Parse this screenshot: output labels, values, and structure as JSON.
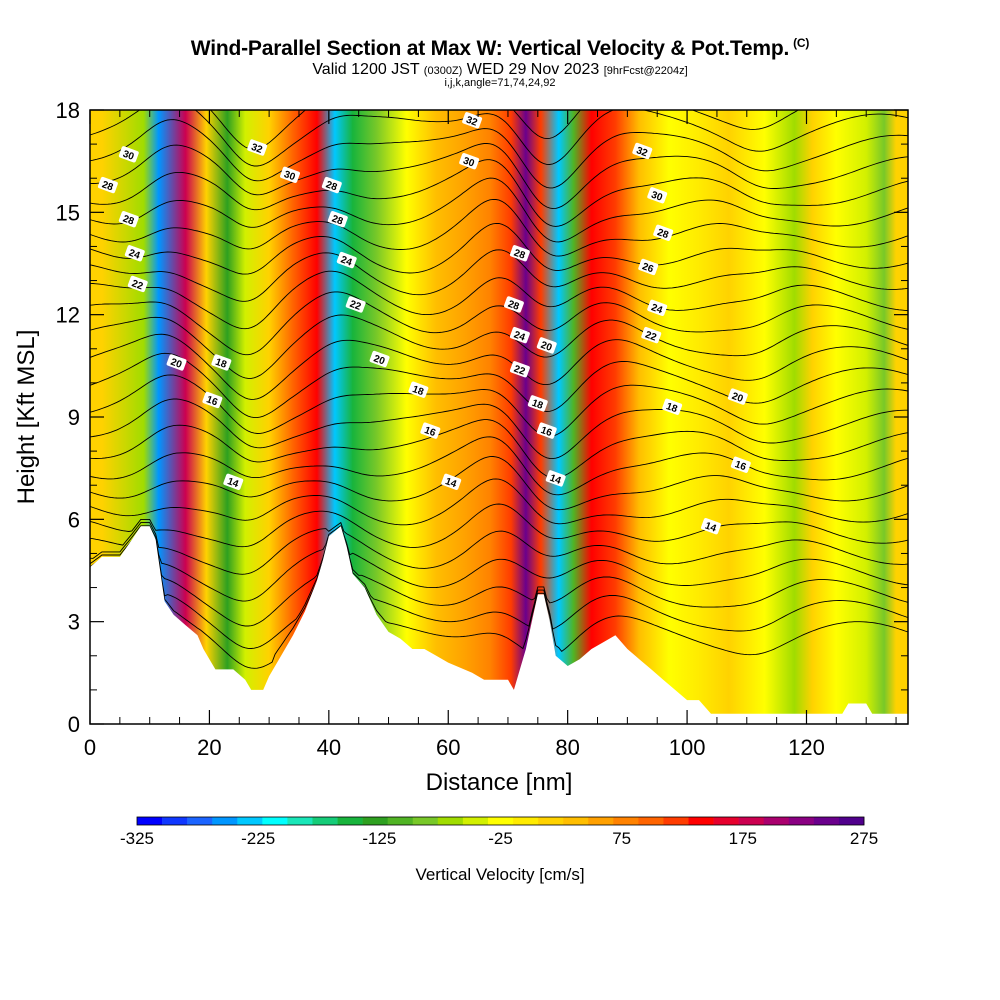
{
  "header": {
    "title": "Wind-Parallel Section at Max W: Vertical Velocity & Pot.Temp.",
    "copyright": "(C)",
    "valid_main": "Valid 1200 JST",
    "valid_utc": "(0300Z)",
    "valid_date": "WED 29 Nov 2023",
    "forecast_tag": "[9hrFcst@2204z]",
    "indices": "i,j,k,angle=71,74,24,92"
  },
  "chart_data": {
    "type": "heatmap",
    "xlabel": "Distance [nm]",
    "ylabel": "Height [Kft MSL]",
    "xlim": [
      0,
      137
    ],
    "ylim": [
      0,
      18
    ],
    "x_ticks": [
      0,
      20,
      40,
      60,
      80,
      100,
      120
    ],
    "x_tick_labels": [
      "0",
      "20",
      "40",
      "60",
      "80",
      "100",
      "120"
    ],
    "y_ticks": [
      0,
      3,
      6,
      9,
      12,
      15,
      18
    ],
    "y_tick_labels": [
      "0",
      "3",
      "6",
      "9",
      "12",
      "15",
      "18"
    ],
    "terrain_kft": [
      [
        0,
        4.6
      ],
      [
        2,
        4.9
      ],
      [
        5,
        4.9
      ],
      [
        7,
        5.4
      ],
      [
        8.5,
        5.8
      ],
      [
        10,
        5.8
      ],
      [
        11,
        5.4
      ],
      [
        12,
        4.2
      ],
      [
        12.5,
        3.6
      ],
      [
        14,
        3.2
      ],
      [
        16,
        2.9
      ],
      [
        18,
        2.6
      ],
      [
        19,
        2.2
      ],
      [
        20,
        1.9
      ],
      [
        21,
        1.6
      ],
      [
        24,
        1.6
      ],
      [
        26,
        1.3
      ],
      [
        27,
        1.0
      ],
      [
        29,
        1.0
      ],
      [
        30,
        1.4
      ],
      [
        32,
        2.0
      ],
      [
        34,
        2.6
      ],
      [
        36,
        3.3
      ],
      [
        38,
        4.2
      ],
      [
        39,
        4.8
      ],
      [
        40,
        5.5
      ],
      [
        42,
        5.8
      ],
      [
        43,
        5.2
      ],
      [
        44,
        4.4
      ],
      [
        46,
        4.0
      ],
      [
        48,
        3.2
      ],
      [
        50,
        2.7
      ],
      [
        52,
        2.5
      ],
      [
        54,
        2.2
      ],
      [
        56,
        2.2
      ],
      [
        58,
        2.0
      ],
      [
        60,
        1.8
      ],
      [
        64,
        1.5
      ],
      [
        66,
        1.3
      ],
      [
        70,
        1.3
      ],
      [
        71,
        1.0
      ],
      [
        72,
        1.6
      ],
      [
        73,
        2.2
      ],
      [
        74,
        3.0
      ],
      [
        75,
        3.8
      ],
      [
        76,
        3.8
      ],
      [
        77,
        3.0
      ],
      [
        78,
        2.0
      ],
      [
        80,
        1.7
      ],
      [
        82,
        1.9
      ],
      [
        84,
        2.2
      ],
      [
        86,
        2.4
      ],
      [
        88,
        2.6
      ],
      [
        90,
        2.2
      ],
      [
        92,
        1.9
      ],
      [
        94,
        1.6
      ],
      [
        96,
        1.3
      ],
      [
        98,
        1.0
      ],
      [
        100,
        0.7
      ],
      [
        102,
        0.7
      ],
      [
        104,
        0.3
      ],
      [
        126,
        0.3
      ],
      [
        127,
        0.6
      ],
      [
        130,
        0.6
      ],
      [
        131,
        0.3
      ],
      [
        137,
        0.3
      ]
    ],
    "vertical_velocity_bands": [
      {
        "x": 2,
        "w": 25
      },
      {
        "x": 9,
        "w": -75
      },
      {
        "x": 11.5,
        "w": -250
      },
      {
        "x": 16,
        "w": 175
      },
      {
        "x": 19.5,
        "w": 25
      },
      {
        "x": 23,
        "w": -125
      },
      {
        "x": 26,
        "w": -50
      },
      {
        "x": 30,
        "w": 25
      },
      {
        "x": 34,
        "w": 90
      },
      {
        "x": 38,
        "w": 140
      },
      {
        "x": 41,
        "w": -230
      },
      {
        "x": 44,
        "w": -150
      },
      {
        "x": 48,
        "w": -90
      },
      {
        "x": 53,
        "w": -30
      },
      {
        "x": 58,
        "w": 30
      },
      {
        "x": 63,
        "w": 60
      },
      {
        "x": 67,
        "w": 80
      },
      {
        "x": 70.5,
        "w": 110
      },
      {
        "x": 73,
        "w": 240
      },
      {
        "x": 75.5,
        "w": 120
      },
      {
        "x": 78.5,
        "w": -240
      },
      {
        "x": 81,
        "w": -110
      },
      {
        "x": 84,
        "w": 150
      },
      {
        "x": 88,
        "w": 110
      },
      {
        "x": 92,
        "w": 30
      },
      {
        "x": 97,
        "w": -20
      },
      {
        "x": 102,
        "w": 0
      },
      {
        "x": 107,
        "w": 20
      },
      {
        "x": 113,
        "w": -30
      },
      {
        "x": 118,
        "w": -60
      },
      {
        "x": 121,
        "w": 10
      },
      {
        "x": 125,
        "w": -20
      },
      {
        "x": 130,
        "w": -50
      },
      {
        "x": 133,
        "w": -90
      },
      {
        "x": 135,
        "w": 20
      }
    ],
    "theta_contour_labels": [
      {
        "label": "30",
        "x": 6.5,
        "y": 16.7
      },
      {
        "label": "28",
        "x": 3,
        "y": 15.8
      },
      {
        "label": "28",
        "x": 6.5,
        "y": 14.8
      },
      {
        "label": "24",
        "x": 7.5,
        "y": 13.8
      },
      {
        "label": "22",
        "x": 8,
        "y": 12.9
      },
      {
        "label": "20",
        "x": 14.5,
        "y": 10.6
      },
      {
        "label": "18",
        "x": 22,
        "y": 10.6
      },
      {
        "label": "16",
        "x": 20.5,
        "y": 9.5
      },
      {
        "label": "14",
        "x": 24,
        "y": 7.1
      },
      {
        "label": "32",
        "x": 28,
        "y": 16.9
      },
      {
        "label": "30",
        "x": 33.5,
        "y": 16.1
      },
      {
        "label": "28",
        "x": 40.5,
        "y": 15.8
      },
      {
        "label": "28",
        "x": 41.5,
        "y": 14.8
      },
      {
        "label": "24",
        "x": 43,
        "y": 13.6
      },
      {
        "label": "22",
        "x": 44.5,
        "y": 12.3
      },
      {
        "label": "20",
        "x": 48.5,
        "y": 10.7
      },
      {
        "label": "18",
        "x": 55,
        "y": 9.8
      },
      {
        "label": "16",
        "x": 57,
        "y": 8.6
      },
      {
        "label": "14",
        "x": 60.5,
        "y": 7.1
      },
      {
        "label": "32",
        "x": 64,
        "y": 17.7
      },
      {
        "label": "30",
        "x": 63.5,
        "y": 16.5
      },
      {
        "label": "28",
        "x": 72,
        "y": 13.8
      },
      {
        "label": "28",
        "x": 71,
        "y": 12.3
      },
      {
        "label": "24",
        "x": 72,
        "y": 11.4
      },
      {
        "label": "20",
        "x": 76.5,
        "y": 11.1
      },
      {
        "label": "22",
        "x": 72,
        "y": 10.4
      },
      {
        "label": "18",
        "x": 75,
        "y": 9.4
      },
      {
        "label": "16",
        "x": 76.5,
        "y": 8.6
      },
      {
        "label": "14",
        "x": 78,
        "y": 7.2
      },
      {
        "label": "32",
        "x": 92.5,
        "y": 16.8
      },
      {
        "label": "30",
        "x": 95,
        "y": 15.5
      },
      {
        "label": "28",
        "x": 96,
        "y": 14.4
      },
      {
        "label": "26",
        "x": 93.5,
        "y": 13.4
      },
      {
        "label": "24",
        "x": 95,
        "y": 12.2
      },
      {
        "label": "22",
        "x": 94,
        "y": 11.4
      },
      {
        "label": "18",
        "x": 97.5,
        "y": 9.3
      },
      {
        "label": "20",
        "x": 108.5,
        "y": 9.6
      },
      {
        "label": "16",
        "x": 109,
        "y": 7.6
      },
      {
        "label": "14",
        "x": 104,
        "y": 5.8
      }
    ],
    "colorbar": {
      "label": "Vertical Velocity [cm/s]",
      "tick_labels": [
        "-325",
        "-225",
        "-125",
        "-25",
        "75",
        "175",
        "275"
      ],
      "tick_values": [
        -325,
        -225,
        -125,
        -25,
        75,
        175,
        275
      ],
      "colors": [
        "#0000ff",
        "#0f37ff",
        "#1b64ff",
        "#0096ff",
        "#00c8ff",
        "#00ffff",
        "#19e6b8",
        "#15cc78",
        "#18b43c",
        "#2ea020",
        "#50b424",
        "#78c828",
        "#a0dc00",
        "#d2f000",
        "#ffff00",
        "#ffeb00",
        "#ffd200",
        "#ffbe00",
        "#ffa000",
        "#ff8200",
        "#ff6400",
        "#ff3c00",
        "#ff0000",
        "#e6002d",
        "#cc0050",
        "#aa006e",
        "#8a0082",
        "#6a008c",
        "#50008c"
      ]
    }
  }
}
